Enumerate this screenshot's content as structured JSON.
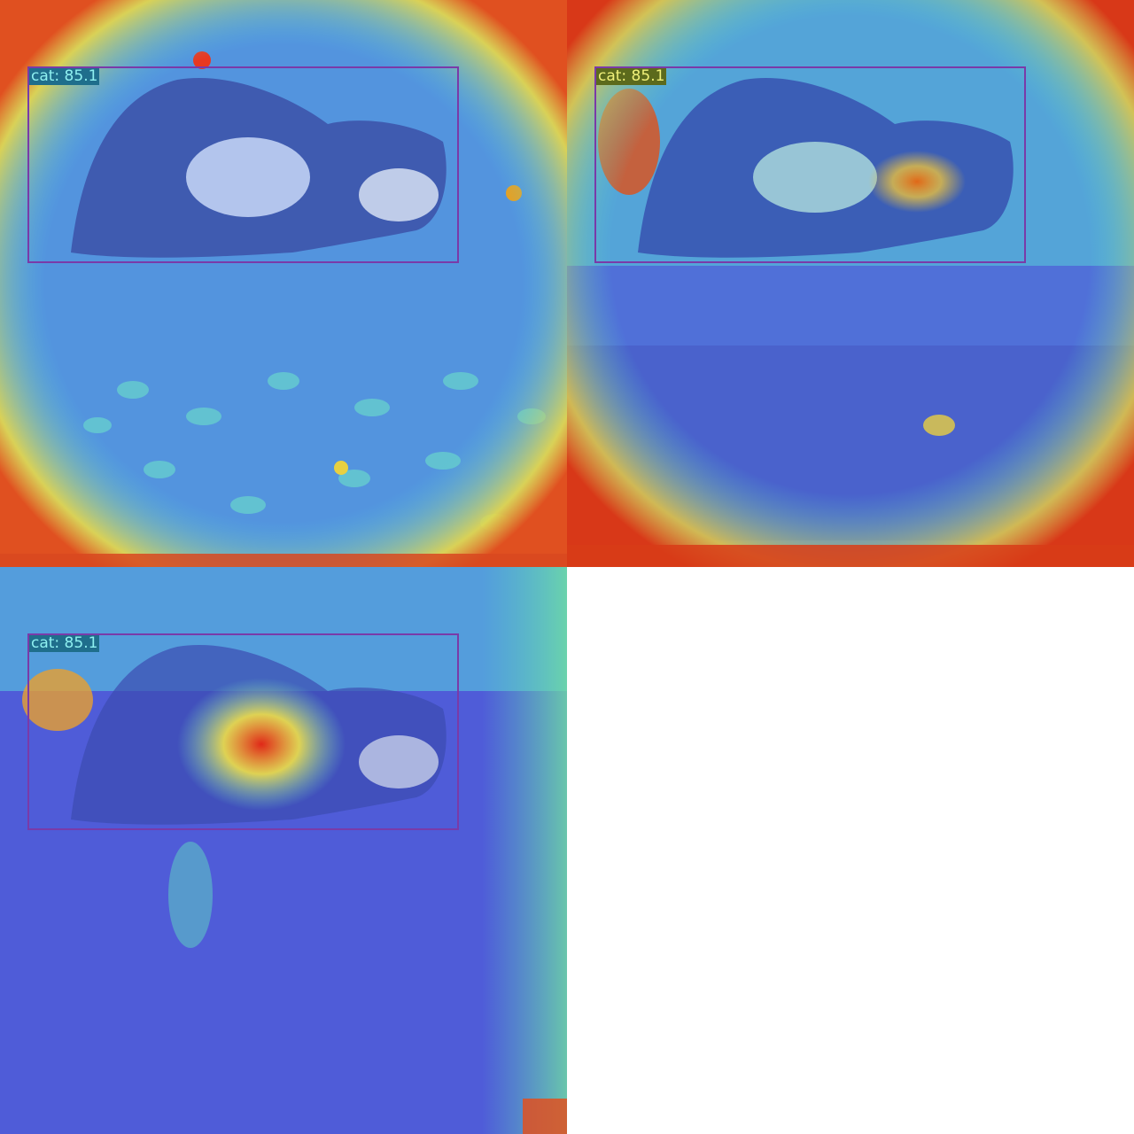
{
  "panels": [
    {
      "detection": {
        "label": "cat: 85.1",
        "label_bg": "#1f6e8c",
        "label_color": "#8ff0f0"
      },
      "heatmap": "edge-focus",
      "palette": {
        "base": "#4a5fd8",
        "mid": "#48d8d0",
        "hot": "#e03818"
      }
    },
    {
      "detection": {
        "label": "cat: 85.1",
        "label_bg": "#5c6a1c",
        "label_color": "#f0f07a"
      },
      "heatmap": "head-focus",
      "palette": {
        "base": "#4a5fd8",
        "mid": "#48d8d0",
        "hot": "#e03818"
      }
    },
    {
      "detection": {
        "label": "cat: 85.1",
        "label_bg": "#1f6e8c",
        "label_color": "#8ff0f0"
      },
      "heatmap": "body-focus",
      "palette": {
        "base": "#4a5fd8",
        "mid": "#48d8d0",
        "hot": "#e03818"
      }
    }
  ]
}
